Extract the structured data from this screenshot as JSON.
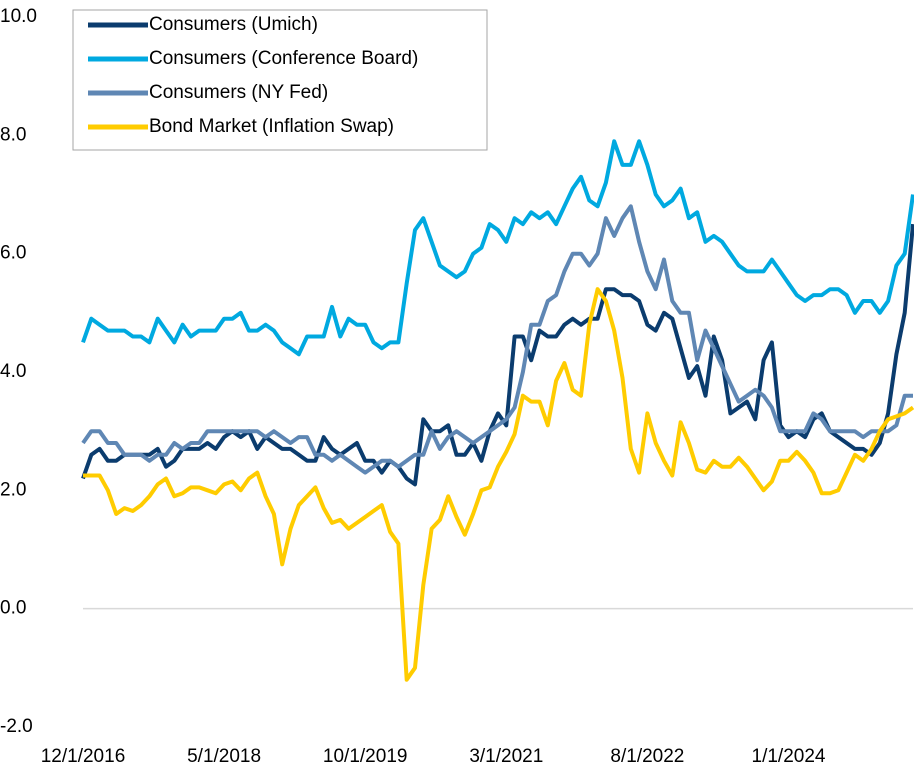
{
  "chart_data": {
    "type": "line",
    "categories": [
      "12/1/2016",
      null,
      null,
      null,
      null,
      null,
      null,
      null,
      null,
      null,
      null,
      null,
      null,
      null,
      null,
      null,
      null,
      "5/1/2018",
      null,
      null,
      null,
      null,
      null,
      null,
      null,
      null,
      null,
      null,
      null,
      null,
      null,
      null,
      null,
      null,
      "10/1/2019",
      null,
      null,
      null,
      null,
      null,
      null,
      null,
      null,
      null,
      null,
      null,
      null,
      null,
      null,
      null,
      null,
      "3/1/2021",
      null,
      null,
      null,
      null,
      null,
      null,
      null,
      null,
      null,
      null,
      null,
      null,
      null,
      null,
      null,
      null,
      "8/1/2022",
      null,
      null,
      null,
      null,
      null,
      null,
      null,
      null,
      null,
      null,
      null,
      null,
      null,
      null,
      null,
      null,
      "1/1/2024",
      null,
      null,
      null,
      null,
      null,
      null,
      null,
      null,
      null,
      null,
      null,
      null,
      null,
      null,
      null
    ],
    "series": [
      {
        "name": "Consumers (Umich)",
        "color": "#0b3c6e",
        "values": [
          2.2,
          2.6,
          2.7,
          2.5,
          2.5,
          2.6,
          2.6,
          2.6,
          2.6,
          2.7,
          2.4,
          2.5,
          2.7,
          2.7,
          2.7,
          2.8,
          2.7,
          2.9,
          3.0,
          2.9,
          3.0,
          2.7,
          2.9,
          2.8,
          2.7,
          2.7,
          2.6,
          2.5,
          2.5,
          2.9,
          2.7,
          2.6,
          2.7,
          2.8,
          2.5,
          2.5,
          2.3,
          2.5,
          2.4,
          2.2,
          2.1,
          3.2,
          3.0,
          3.0,
          3.1,
          2.6,
          2.6,
          2.8,
          2.5,
          3.0,
          3.3,
          3.1,
          4.6,
          4.6,
          4.2,
          4.7,
          4.6,
          4.6,
          4.8,
          4.9,
          4.8,
          4.9,
          4.9,
          5.4,
          5.4,
          5.3,
          5.3,
          5.2,
          4.8,
          4.7,
          5.0,
          4.9,
          4.4,
          3.9,
          4.1,
          3.6,
          4.6,
          4.2,
          3.3,
          3.4,
          3.5,
          3.2,
          4.2,
          4.5,
          3.1,
          2.9,
          3.0,
          2.9,
          3.2,
          3.3,
          3.0,
          2.9,
          2.8,
          2.7,
          2.7,
          2.6,
          2.8,
          3.3,
          4.3,
          5.0,
          6.5
        ]
      },
      {
        "name": "Consumers (Conference Board)",
        "color": "#00a9e0",
        "values": [
          4.5,
          4.9,
          4.8,
          4.7,
          4.7,
          4.7,
          4.6,
          4.6,
          4.5,
          4.9,
          4.7,
          4.5,
          4.8,
          4.6,
          4.7,
          4.7,
          4.7,
          4.9,
          4.9,
          5.0,
          4.7,
          4.7,
          4.8,
          4.7,
          4.5,
          4.4,
          4.3,
          4.6,
          4.6,
          4.6,
          5.1,
          4.6,
          4.9,
          4.8,
          4.8,
          4.5,
          4.4,
          4.5,
          4.5,
          5.5,
          6.4,
          6.6,
          6.2,
          5.8,
          5.7,
          5.6,
          5.7,
          6.0,
          6.1,
          6.5,
          6.4,
          6.2,
          6.6,
          6.5,
          6.7,
          6.6,
          6.7,
          6.5,
          6.8,
          7.1,
          7.3,
          6.9,
          6.8,
          7.2,
          7.9,
          7.5,
          7.5,
          7.9,
          7.5,
          7.0,
          6.8,
          6.9,
          7.1,
          6.6,
          6.7,
          6.2,
          6.3,
          6.2,
          6.0,
          5.8,
          5.7,
          5.7,
          5.7,
          5.9,
          5.7,
          5.5,
          5.3,
          5.2,
          5.3,
          5.3,
          5.4,
          5.4,
          5.3,
          5.0,
          5.2,
          5.2,
          5.0,
          5.2,
          5.8,
          6.0,
          7.0
        ]
      },
      {
        "name": "Consumers (NY Fed)",
        "color": "#5f87b4",
        "values": [
          2.8,
          3.0,
          3.0,
          2.8,
          2.8,
          2.6,
          2.6,
          2.6,
          2.5,
          2.6,
          2.6,
          2.8,
          2.7,
          2.8,
          2.8,
          3.0,
          3.0,
          3.0,
          3.0,
          3.0,
          3.0,
          3.0,
          2.9,
          3.0,
          2.9,
          2.8,
          2.9,
          2.9,
          2.6,
          2.6,
          2.5,
          2.6,
          2.5,
          2.4,
          2.3,
          2.4,
          2.5,
          2.5,
          2.4,
          2.5,
          2.6,
          2.6,
          3.0,
          2.7,
          2.9,
          3.0,
          2.9,
          2.8,
          2.9,
          3.0,
          3.1,
          3.2,
          3.4,
          4.0,
          4.8,
          4.8,
          5.2,
          5.3,
          5.7,
          6.0,
          6.0,
          5.8,
          6.0,
          6.6,
          6.3,
          6.6,
          6.8,
          6.2,
          5.7,
          5.4,
          5.9,
          5.2,
          5.0,
          5.0,
          4.2,
          4.7,
          4.4,
          4.1,
          3.8,
          3.5,
          3.6,
          3.7,
          3.6,
          3.4,
          3.0,
          3.0,
          3.0,
          3.0,
          3.3,
          3.2,
          3.0,
          3.0,
          3.0,
          3.0,
          2.9,
          3.0,
          3.0,
          3.0,
          3.1,
          3.6,
          3.6
        ]
      },
      {
        "name": "Bond Market (Inflation Swap)",
        "color": "#ffcc00",
        "values": [
          2.25,
          2.25,
          2.25,
          2.0,
          1.6,
          1.7,
          1.65,
          1.75,
          1.9,
          2.1,
          2.2,
          1.9,
          1.95,
          2.05,
          2.05,
          2.0,
          1.95,
          2.1,
          2.15,
          2.0,
          2.2,
          2.3,
          1.9,
          1.6,
          0.75,
          1.35,
          1.75,
          1.9,
          2.05,
          1.7,
          1.45,
          1.5,
          1.35,
          1.45,
          1.55,
          1.65,
          1.75,
          1.3,
          1.1,
          -1.2,
          -1.0,
          0.4,
          1.35,
          1.5,
          1.9,
          1.55,
          1.25,
          1.6,
          2.0,
          2.05,
          2.4,
          2.65,
          2.95,
          3.6,
          3.5,
          3.5,
          3.1,
          3.85,
          4.15,
          3.7,
          3.6,
          4.8,
          5.4,
          5.2,
          4.7,
          3.9,
          2.7,
          2.3,
          3.3,
          2.8,
          2.5,
          2.25,
          3.15,
          2.8,
          2.35,
          2.3,
          2.5,
          2.4,
          2.4,
          2.55,
          2.4,
          2.2,
          2.0,
          2.15,
          2.5,
          2.5,
          2.65,
          2.5,
          2.3,
          1.95,
          1.95,
          2.0,
          2.3,
          2.6,
          2.5,
          2.7,
          3.0,
          3.2,
          3.25,
          3.3,
          3.4
        ]
      }
    ],
    "ylim": [
      -2,
      10
    ],
    "yticks": [
      {
        "value": 10,
        "label": "10.0"
      },
      {
        "value": 8,
        "label": "8.0"
      },
      {
        "value": 6,
        "label": "6.0"
      },
      {
        "value": 4,
        "label": "4.0"
      },
      {
        "value": 2,
        "label": "2.0"
      },
      {
        "value": 0,
        "label": "0.0"
      },
      {
        "value": -2,
        "label": "-2.0"
      }
    ],
    "legend": "upper left"
  }
}
